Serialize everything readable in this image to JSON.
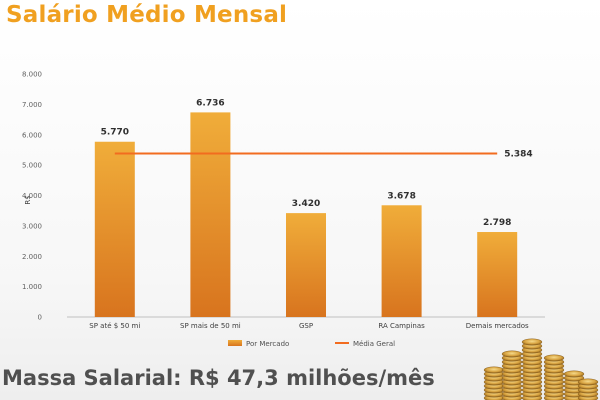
{
  "title": "Salário Médio Mensal",
  "footer": "Massa Salarial: R$ 47,3 milhões/mês",
  "colors": {
    "bar_top": "#f0ad3a",
    "bar_bottom": "#d8741e",
    "line": "#f26c1f",
    "title": "#f0a020"
  },
  "chart_data": {
    "type": "bar",
    "categories": [
      "SP até $ 50 mi",
      "SP mais de 50 mi",
      "GSP",
      "RA Campinas",
      "Demais mercados"
    ],
    "series": [
      {
        "name": "Por Mercado",
        "values": [
          5770,
          6736,
          3420,
          3678,
          2798
        ]
      },
      {
        "name": "Média Geral",
        "type": "line",
        "values": [
          5384,
          5384,
          5384,
          5384,
          5384
        ]
      }
    ],
    "data_labels": [
      "5.770",
      "6.736",
      "3.420",
      "3.678",
      "2.798"
    ],
    "line_label": "5.384",
    "ylabel": "R$",
    "ylim": [
      0,
      8000
    ],
    "yticks": [
      0,
      1000,
      2000,
      3000,
      4000,
      5000,
      6000,
      7000,
      8000
    ],
    "ytick_labels": [
      "0",
      "1.000",
      "2.000",
      "3.000",
      "4.000",
      "5.000",
      "6.000",
      "7.000",
      "8.000"
    ],
    "legend": [
      "Por Mercado",
      "Média Geral"
    ],
    "legend_position": "bottom",
    "grid": false
  }
}
